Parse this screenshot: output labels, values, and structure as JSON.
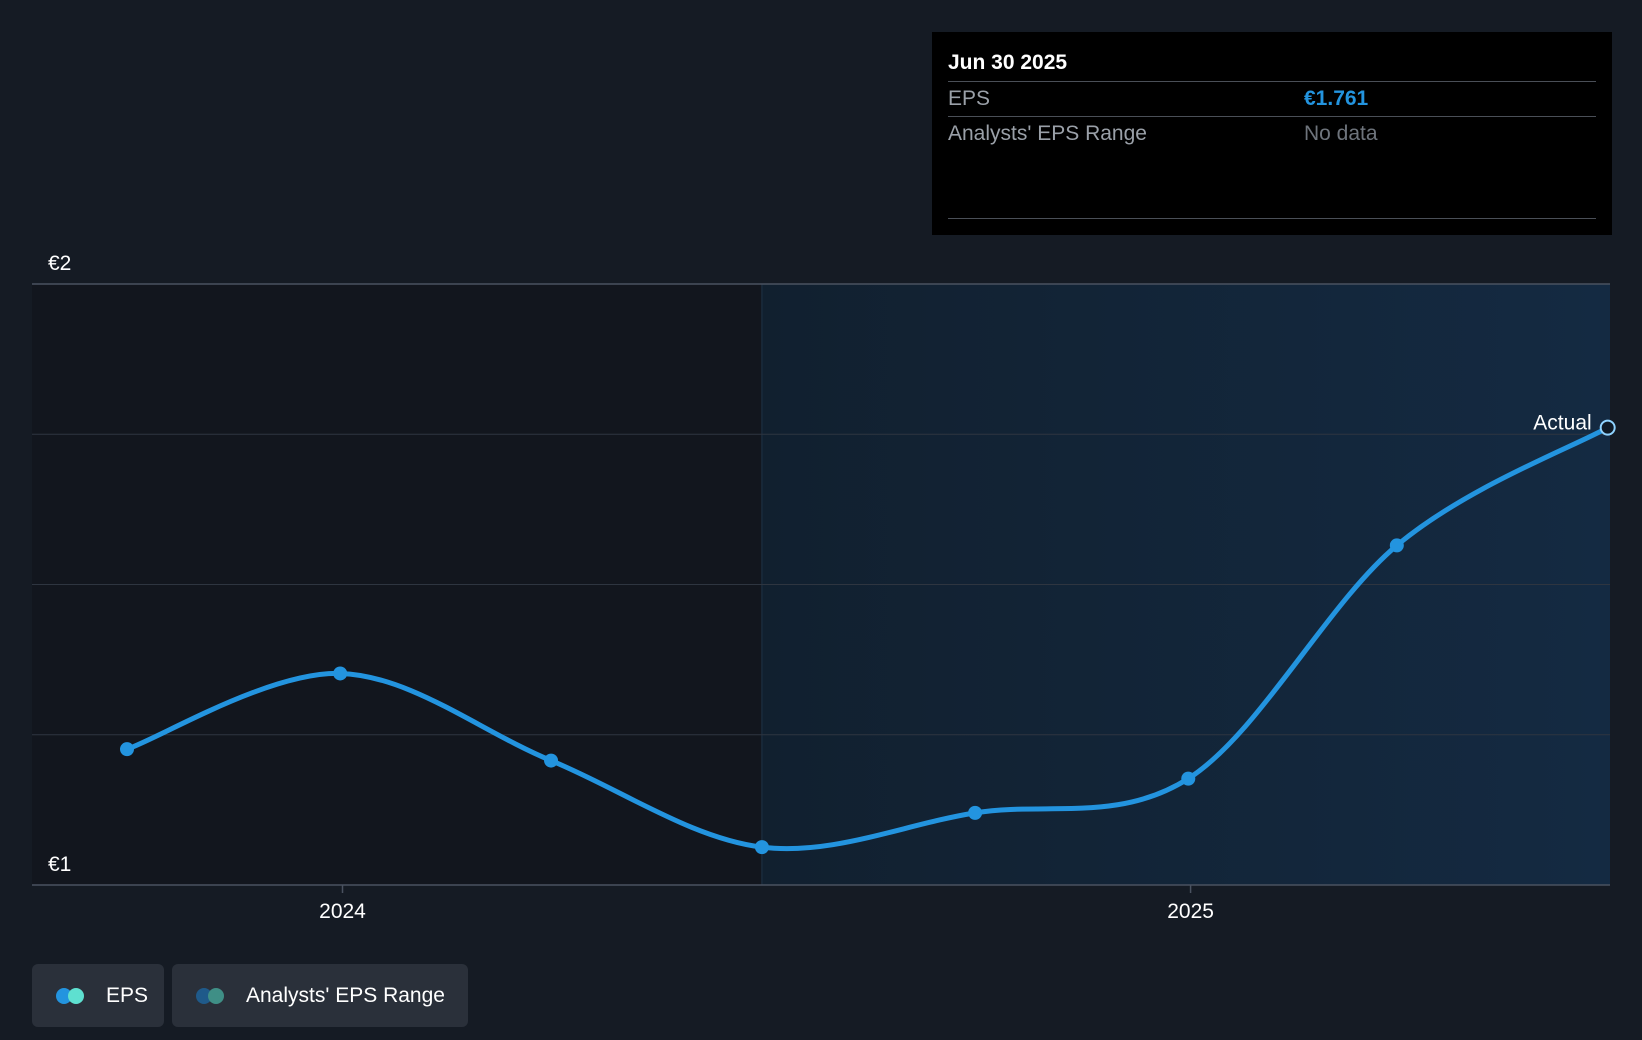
{
  "tooltip": {
    "date": "Jun 30 2025",
    "rows": [
      {
        "label": "EPS",
        "value": "€1.761"
      },
      {
        "label": "Analysts' EPS Range",
        "value": "No data"
      }
    ]
  },
  "legend": [
    {
      "label": "EPS",
      "colors": [
        "#2394df",
        "#5ee0d0"
      ]
    },
    {
      "label": "Analysts' EPS Range",
      "colors": [
        "#1f5a8a",
        "#3f8f86"
      ]
    }
  ],
  "colors": {
    "background": "#151b24",
    "past_region": "#12161e",
    "future_region": "#13243a",
    "eps_line": "#2394df",
    "gridline": "#2e3540"
  },
  "chart_data": {
    "type": "line",
    "series": [
      {
        "name": "EPS",
        "x": [
          "2023-09-30",
          "2023-12-31",
          "2024-03-31",
          "2024-06-30",
          "2024-09-30",
          "2024-12-31",
          "2025-03-31",
          "2025-06-30"
        ],
        "values": [
          1.226,
          1.352,
          1.207,
          1.063,
          1.12,
          1.177,
          1.565,
          1.761
        ]
      }
    ],
    "x_ticks": [
      {
        "date": "2024-01-01",
        "label": "2024"
      },
      {
        "date": "2025-01-01",
        "label": "2025"
      }
    ],
    "y_ticks": [
      {
        "value": 2,
        "label": "€2"
      },
      {
        "value": 1,
        "label": "€1"
      }
    ],
    "xlim": [
      "2023-08-20",
      "2025-07-01"
    ],
    "ylim": [
      1,
      2
    ],
    "grid": true,
    "highlight_from": "2024-06-30",
    "end_label": "Actual",
    "legend_position": "bottom-left"
  }
}
